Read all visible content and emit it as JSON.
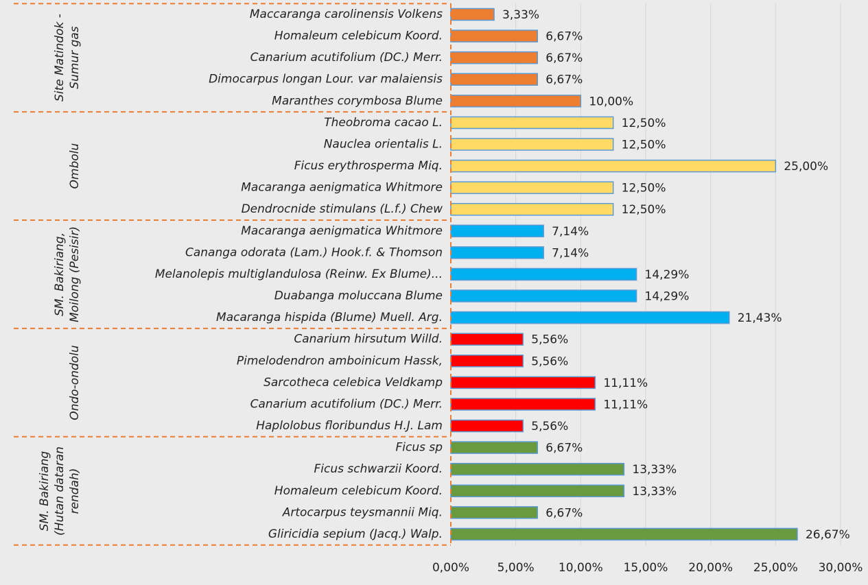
{
  "chart_data": {
    "type": "bar",
    "orientation": "horizontal",
    "bar_edge_color": "#5b9bd5",
    "grid": true,
    "xlim": [
      0,
      30
    ],
    "xticks": [
      {
        "value": 0,
        "label": "0,00%"
      },
      {
        "value": 5,
        "label": "5,00%"
      },
      {
        "value": 10,
        "label": "10,00%"
      },
      {
        "value": 15,
        "label": "15,00%"
      },
      {
        "value": 20,
        "label": "20,00%"
      },
      {
        "value": 25,
        "label": "25,00%"
      },
      {
        "value": 30,
        "label": "30,00%"
      }
    ],
    "series": [
      {
        "name": "Site Matindok - Sumur gas",
        "color": "#ed7d31",
        "categories": [
          "Maccaranga carolinensis Volkens",
          "Homaleum celebicum Koord.",
          "Canarium acutifolium (DC.) Merr.",
          "Dimocarpus longan Lour. var malaiensis",
          "Maranthes corymbosa Blume"
        ],
        "values": [
          3.33,
          6.67,
          6.67,
          6.67,
          10.0
        ],
        "value_labels": [
          "3,33%",
          "6,67%",
          "6,67%",
          "6,67%",
          "10,00%"
        ]
      },
      {
        "name": "Ombolu",
        "color": "#ffd966",
        "categories": [
          "Theobroma cacao L.",
          "Nauclea orientalis L.",
          "Ficus erythrosperma Miq.",
          "Macaranga aenigmatica Whitmore",
          "Dendrocnide stimulans (L.f.) Chew"
        ],
        "values": [
          12.5,
          12.5,
          25.0,
          12.5,
          12.5
        ],
        "value_labels": [
          "12,50%",
          "12,50%",
          "25,00%",
          "12,50%",
          "12,50%"
        ]
      },
      {
        "name": "SM. Bakiriang, Moilong (Pesisir)",
        "color": "#00b0f0",
        "categories": [
          "Macaranga aenigmatica Whitmore",
          "Cananga odorata (Lam.) Hook.f. & Thomson",
          "Melanolepis multiglandulosa (Reinw. Ex Blume)...",
          "Duabanga moluccana Blume",
          "Macaranga hispida (Blume) Muell. Arg."
        ],
        "values": [
          7.14,
          7.14,
          14.29,
          14.29,
          21.43
        ],
        "value_labels": [
          "7,14%",
          "7,14%",
          "14,29%",
          "14,29%",
          "21,43%"
        ]
      },
      {
        "name": "Ondo-ondolu",
        "color": "#ff0000",
        "categories": [
          "Canarium hirsutum Willd.",
          "Pimelodendron amboinicum Hassk,",
          "Sarcotheca celebica Veldkamp",
          "Canarium acutifolium (DC.) Merr.",
          "Haplolobus floribundus H.J. Lam"
        ],
        "values": [
          5.56,
          5.56,
          11.11,
          11.11,
          5.56
        ],
        "value_labels": [
          "5,56%",
          "5,56%",
          "11,11%",
          "11,11%",
          "5,56%"
        ]
      },
      {
        "name": "SM. Bakiriang (Hutan dataran rendah)",
        "color": "#6a9a3f",
        "categories": [
          "Ficus sp",
          "Ficus schwarzii Koord.",
          "Homaleum celebicum Koord.",
          "Artocarpus teysmannii Miq.",
          "Gliricidia sepium (Jacq.) Walp."
        ],
        "values": [
          6.67,
          13.33,
          13.33,
          6.67,
          26.67
        ],
        "value_labels": [
          "6,67%",
          "13,33%",
          "13,33%",
          "6,67%",
          "26,67%"
        ]
      }
    ]
  }
}
